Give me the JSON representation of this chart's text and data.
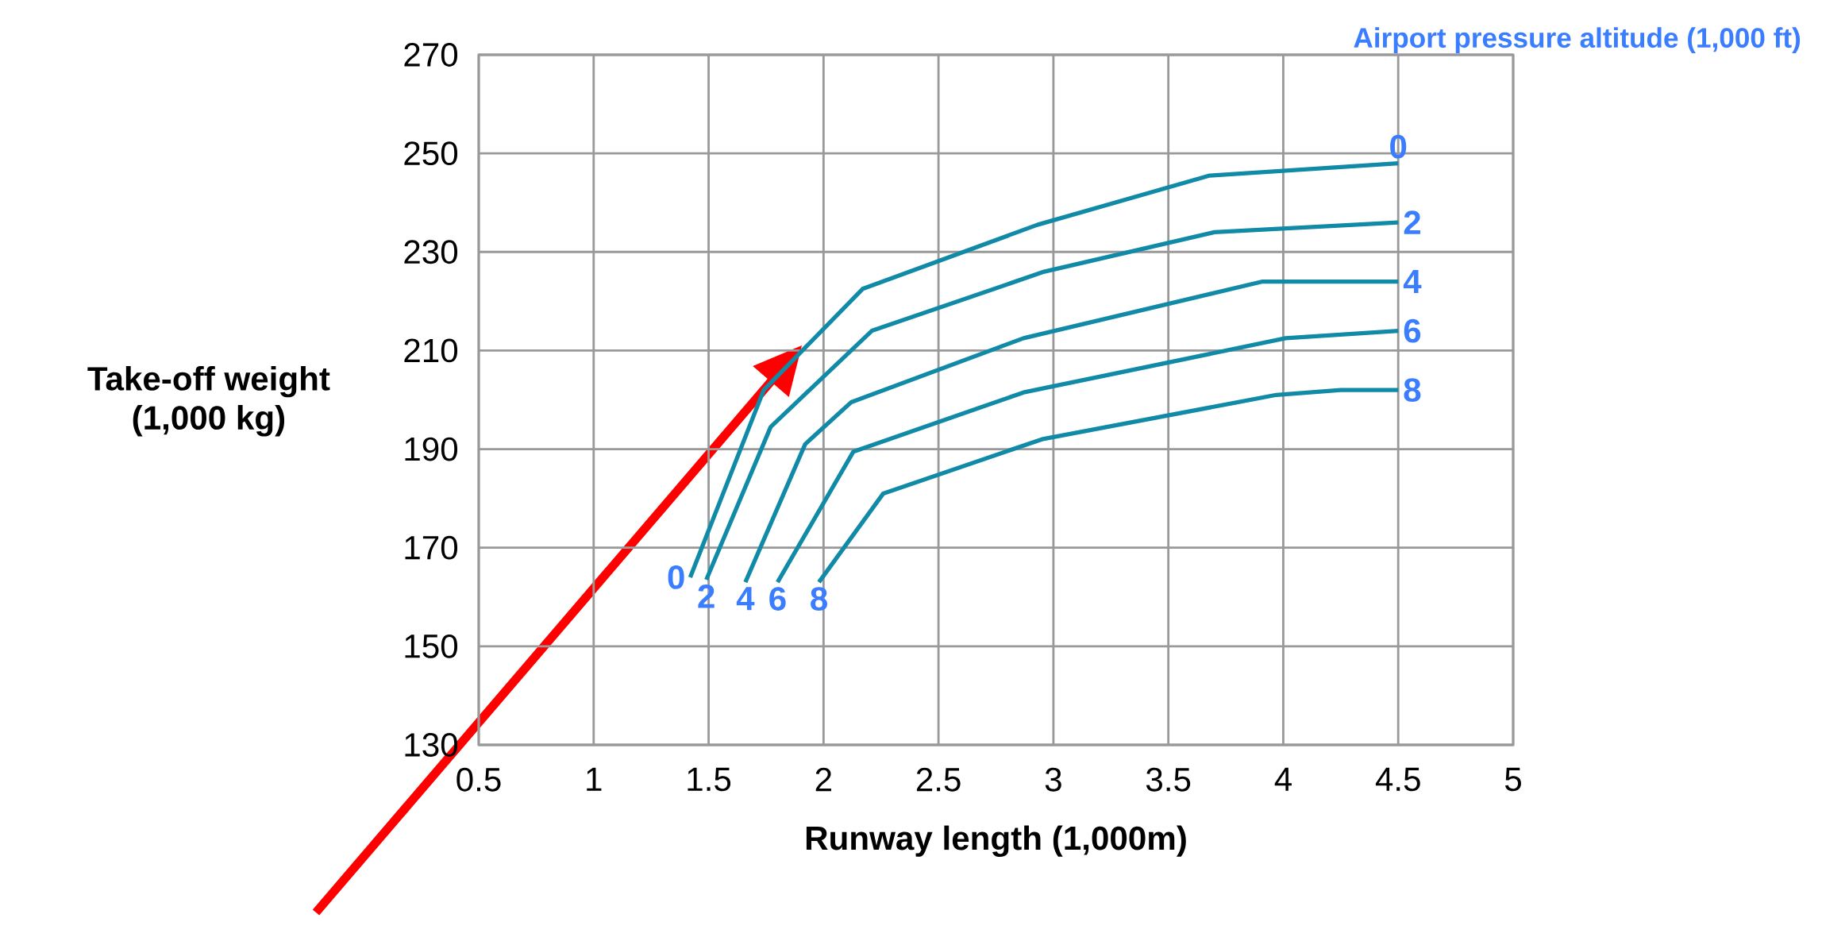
{
  "chart_data": {
    "type": "line",
    "xlabel": "Runway length (1,000m)",
    "ylabel": "Take-off weight\n(1,000 kg)",
    "legend_title": "Airport pressure altitude (1,000 ft)",
    "xlim": [
      0.5,
      5
    ],
    "xticks": [
      0.5,
      1,
      1.5,
      2,
      2.5,
      3,
      3.5,
      4,
      4.5,
      5
    ],
    "ylim": [
      130,
      270
    ],
    "yticks": [
      130,
      150,
      170,
      190,
      210,
      230,
      250,
      270
    ],
    "grid": true,
    "series": [
      {
        "name": "0",
        "color": "#108aa6",
        "x": [
          1.42,
          1.74,
          2.17,
          2.93,
          3.68,
          4.5
        ],
        "values": [
          164,
          202,
          222.5,
          235.5,
          245.5,
          248
        ]
      },
      {
        "name": "2",
        "color": "#108aa6",
        "x": [
          1.49,
          1.77,
          2.21,
          2.96,
          3.7,
          4.5
        ],
        "values": [
          163.5,
          194.5,
          214,
          226,
          234,
          236
        ]
      },
      {
        "name": "4",
        "color": "#108aa6",
        "x": [
          1.66,
          1.92,
          2.12,
          2.87,
          3.91,
          4.5
        ],
        "values": [
          163,
          191,
          199.5,
          212.5,
          224,
          224
        ]
      },
      {
        "name": "6",
        "color": "#108aa6",
        "x": [
          1.8,
          2.13,
          2.87,
          4.01,
          4.5
        ],
        "values": [
          163,
          189.5,
          201.5,
          212.5,
          214
        ]
      },
      {
        "name": "8",
        "color": "#108aa6",
        "x": [
          1.98,
          2.26,
          2.95,
          3.97,
          4.25,
          4.5
        ],
        "values": [
          163,
          181,
          192,
          201,
          202,
          202
        ]
      }
    ]
  }
}
